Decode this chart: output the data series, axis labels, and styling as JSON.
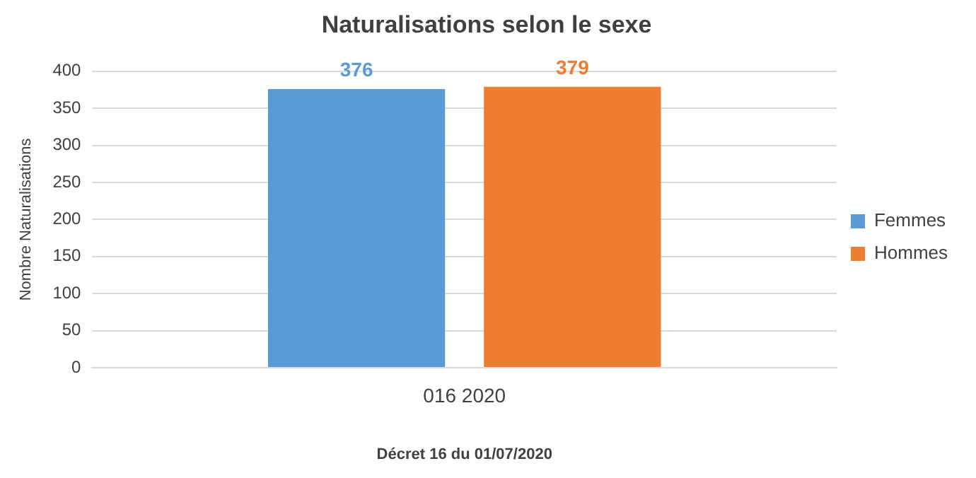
{
  "chart_data": {
    "type": "bar",
    "title": "Naturalisations selon le sexe",
    "xlabel": "Décret 16 du 01/07/2020",
    "ylabel": "Nombre Naturalisations",
    "categories": [
      "016 2020"
    ],
    "series": [
      {
        "name": "Femmes",
        "color": "#5b9bd5",
        "values": [
          376
        ]
      },
      {
        "name": "Hommes",
        "color": "#ed7d31",
        "values": [
          379
        ]
      }
    ],
    "ylim": [
      0,
      400
    ],
    "yticks": [
      0,
      50,
      100,
      150,
      200,
      250,
      300,
      350,
      400
    ],
    "grid": "y",
    "legend": "right",
    "data_labels": true
  }
}
